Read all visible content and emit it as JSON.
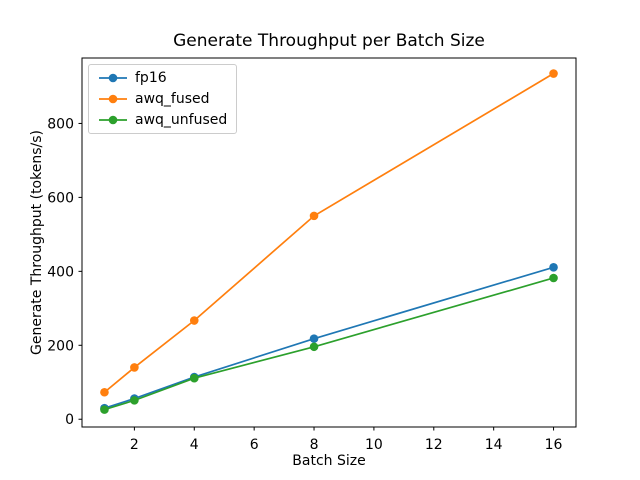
{
  "chart_data": {
    "type": "line",
    "title": "Generate Throughput per Batch Size",
    "xlabel": "Batch Size",
    "ylabel": "Generate Throughput (tokens/s)",
    "x": [
      1,
      2,
      4,
      8,
      16
    ],
    "series": [
      {
        "name": "fp16",
        "color": "#1f77b4",
        "values": [
          30,
          56,
          114,
          218,
          411
        ]
      },
      {
        "name": "awq_fused",
        "color": "#ff7f0e",
        "values": [
          73,
          140,
          267,
          550,
          935
        ]
      },
      {
        "name": "awq_unfused",
        "color": "#2ca02c",
        "values": [
          26,
          51,
          111,
          196,
          382
        ]
      }
    ],
    "xticks": [
      2,
      4,
      6,
      8,
      10,
      12,
      14,
      16
    ],
    "yticks": [
      0,
      200,
      400,
      600,
      800
    ],
    "xlim": [
      0.25,
      16.75
    ],
    "ylim": [
      -21,
      977
    ],
    "legend_position": "upper left",
    "grid": false,
    "marker": "circle",
    "background": "#ffffff",
    "spine_color": "#000000"
  }
}
